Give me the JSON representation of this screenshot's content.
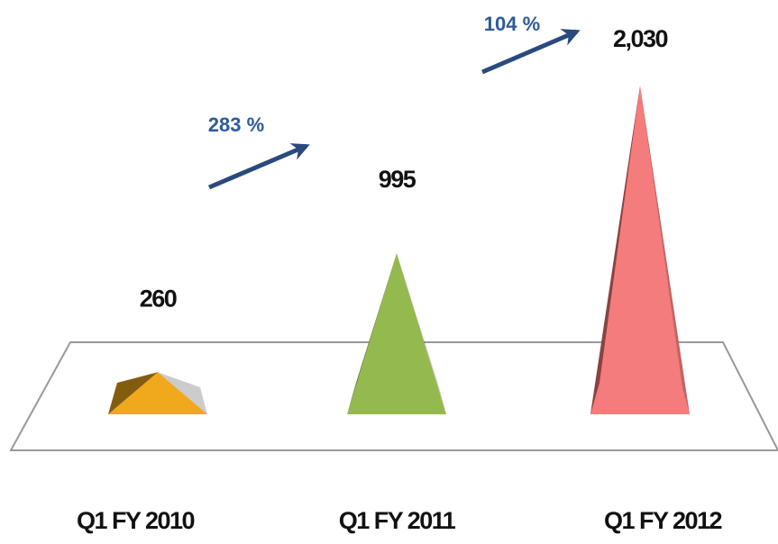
{
  "chart_data": {
    "type": "pyramid",
    "categories": [
      "Q1 FY 2010",
      "Q1 FY 2011",
      "Q1 FY 2012"
    ],
    "values": [
      260,
      995,
      2030
    ],
    "value_labels": [
      "260",
      "995",
      "2,030"
    ],
    "colors": [
      "#f0a81c",
      "#94b94f",
      "#f47c7c"
    ],
    "annotations": [
      "283 %",
      "104 %"
    ]
  }
}
